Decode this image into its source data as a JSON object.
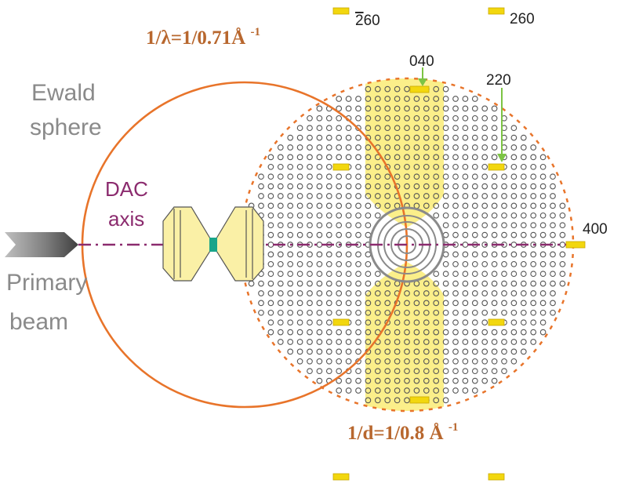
{
  "labels": {
    "ewald_line1": "Ewald",
    "ewald_line2": "sphere",
    "dac_line1": "DAC",
    "dac_line2": "axis",
    "primary_line1": "Primary",
    "primary_line2": "beam",
    "lambda_main": "1/λ=1/0.71Å",
    "lambda_sup": "-1",
    "d_main": "1/d=1/0.8 Å",
    "d_sup": "-1"
  },
  "reflections": {
    "r040": "040",
    "r220": "220",
    "r400": "400",
    "r260_neg_bar": "2",
    "r260_neg_rest": "60",
    "r260": "260"
  },
  "colors": {
    "ewald": "#e8742a",
    "resolution": "#e8742a",
    "yellow_band": "#fbef8a",
    "reflection": "#f2d70e",
    "dac_axis": "#8b2b6e",
    "arrow": "#7cc444",
    "diamond": "#faf0a6",
    "lattice": "#555555"
  }
}
